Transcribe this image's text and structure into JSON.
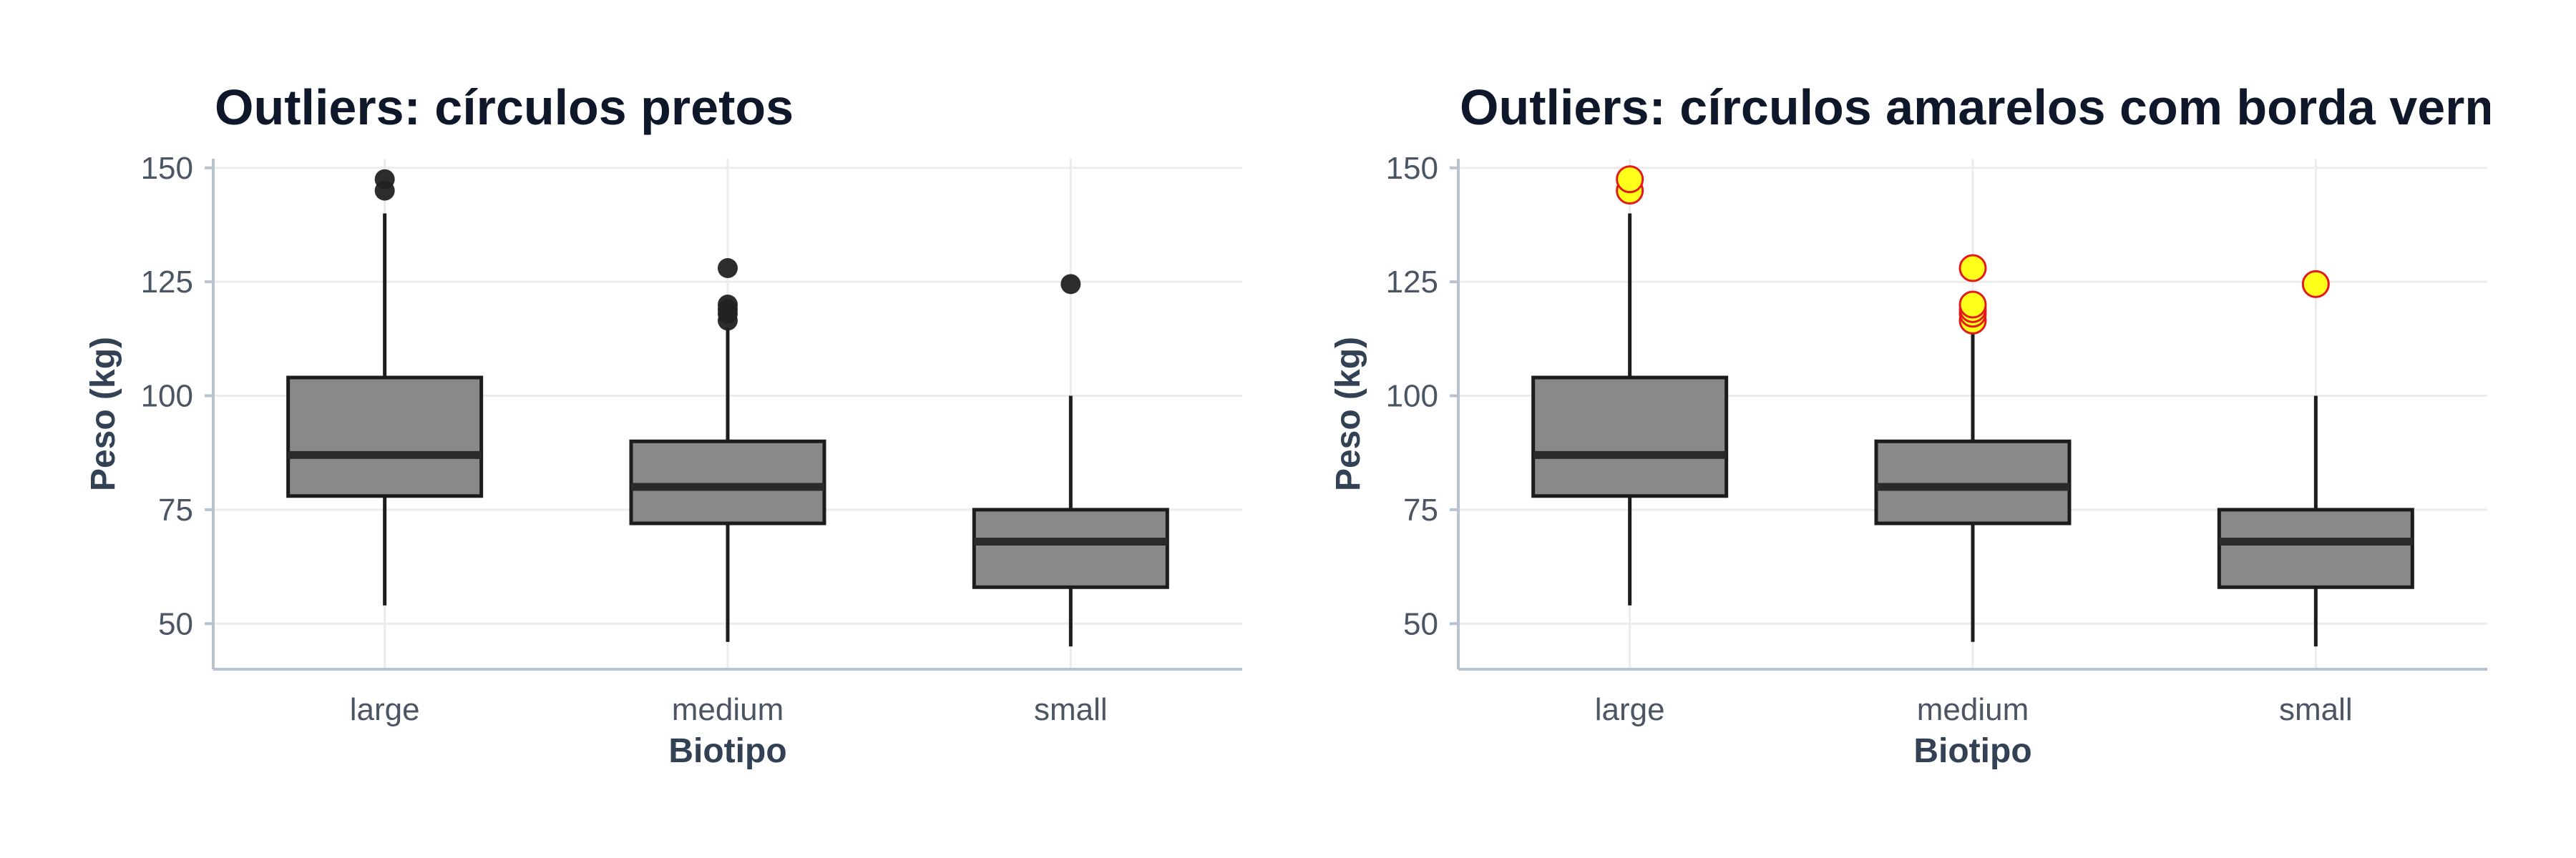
{
  "chart_data": [
    {
      "type": "boxplot",
      "title": "Outliers: círculos pretos",
      "xlabel": "Biotipo",
      "ylabel": "Peso (kg)",
      "categories": [
        "large",
        "medium",
        "small"
      ],
      "yticks": [
        50,
        75,
        100,
        125,
        150
      ],
      "ylim": [
        40,
        152
      ],
      "grid": true,
      "box_color": "#898989",
      "outlier_style": {
        "fill": "#222222",
        "stroke": "#222222"
      },
      "boxes": [
        {
          "category": "large",
          "whisker_low": 54,
          "q1": 78,
          "median": 87,
          "q3": 104,
          "whisker_high": 140,
          "outliers": [
            145,
            147.5
          ]
        },
        {
          "category": "medium",
          "whisker_low": 46,
          "q1": 72,
          "median": 80,
          "q3": 90,
          "whisker_high": 115,
          "outliers": [
            116.5,
            118,
            119,
            120,
            128
          ]
        },
        {
          "category": "small",
          "whisker_low": 45,
          "q1": 58,
          "median": 68,
          "q3": 75,
          "whisker_high": 100,
          "outliers": [
            124.5
          ]
        }
      ]
    },
    {
      "type": "boxplot",
      "title": "Outliers: círculos amarelos com borda vermelha",
      "xlabel": "Biotipo",
      "ylabel": "Peso (kg)",
      "categories": [
        "large",
        "medium",
        "small"
      ],
      "yticks": [
        50,
        75,
        100,
        125,
        150
      ],
      "ylim": [
        40,
        152
      ],
      "grid": true,
      "box_color": "#898989",
      "outlier_style": {
        "fill": "#ffff1a",
        "stroke": "#e31a1c"
      },
      "boxes": [
        {
          "category": "large",
          "whisker_low": 54,
          "q1": 78,
          "median": 87,
          "q3": 104,
          "whisker_high": 140,
          "outliers": [
            145,
            147.5
          ]
        },
        {
          "category": "medium",
          "whisker_low": 46,
          "q1": 72,
          "median": 80,
          "q3": 90,
          "whisker_high": 115,
          "outliers": [
            116.5,
            118,
            119,
            120,
            128
          ]
        },
        {
          "category": "small",
          "whisker_low": 45,
          "q1": 58,
          "median": 68,
          "q3": 75,
          "whisker_high": 100,
          "outliers": [
            124.5
          ]
        }
      ]
    }
  ]
}
